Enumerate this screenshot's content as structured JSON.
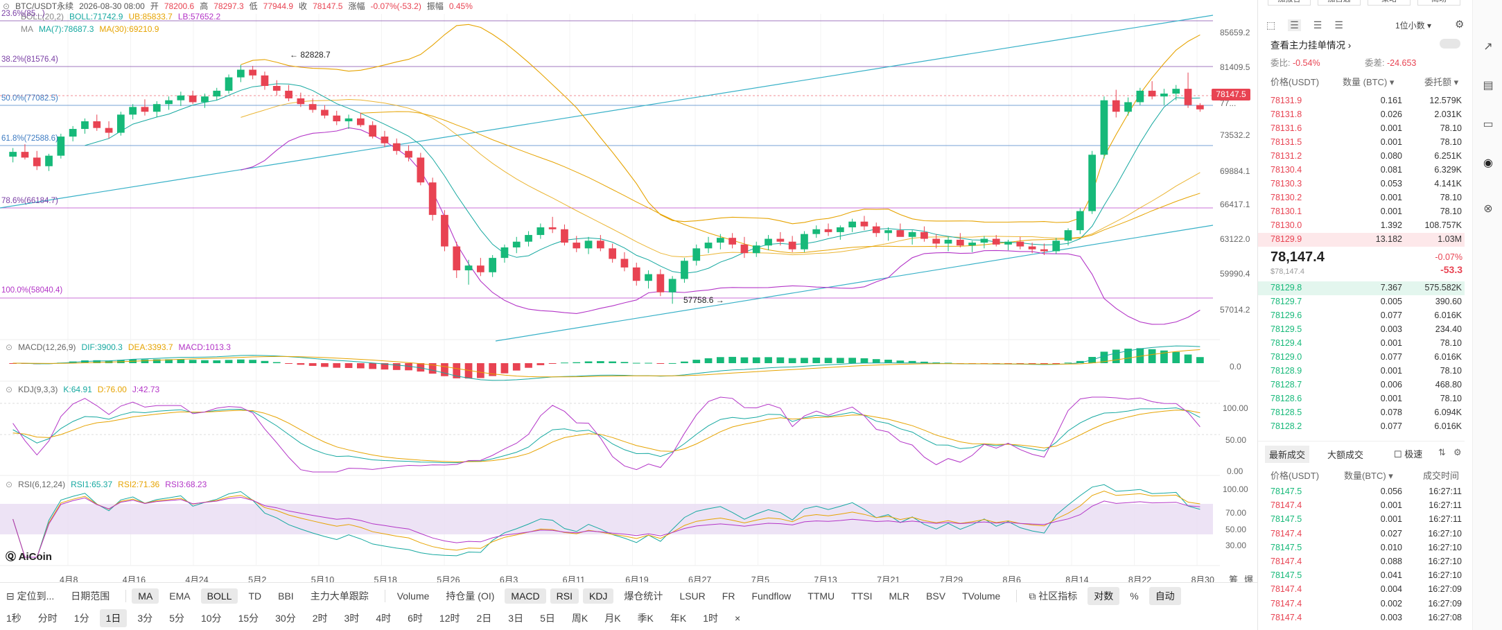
{
  "header": {
    "symbol": "BTC/USDT永续",
    "date": "2026-08-30 08:00",
    "open_label": "开",
    "open": "78200.6",
    "high_label": "高",
    "high": "78297.3",
    "low_label": "低",
    "low": "77944.9",
    "close_label": "收",
    "close": "78147.5",
    "chg_label": "涨幅",
    "chg": "-0.07%(-53.2)",
    "amp_label": "振幅",
    "amp": "0.45%"
  },
  "boll": {
    "name": "BOLL(20,2)",
    "boll": "BOLL:71742.9",
    "ub": "UB:85833.7",
    "lb": "LB:57652.2"
  },
  "ma": {
    "name": "MA",
    "ma7": "MA(7):78687.3",
    "ma30": "MA(30):69210.9"
  },
  "fib": {
    "f236": "23.6%(85...)",
    "f382": "38.2%(81576.4)",
    "f50": "50.0%(77082.5)",
    "f618": "61.8%(72588.6)",
    "f786": "78.6%(66184.7)",
    "f100": "100.0%(58040.4)"
  },
  "annotations": {
    "high": "82828.7",
    "low": "57758.6"
  },
  "price_axis": [
    "85659.2",
    "81409.5",
    "77...",
    "73532.2",
    "69884.1",
    "66417.1",
    "63122.0",
    "59990.4",
    "57014.2"
  ],
  "last_price_tag": "78147.5",
  "macd": {
    "name": "MACD(12,26,9)",
    "dif": "DIF:3900.3",
    "dea": "DEA:3393.7",
    "macd": "MACD:1013.3",
    "axis": "0.0"
  },
  "kdj": {
    "name": "KDJ(9,3,3)",
    "k": "K:64.91",
    "d": "D:76.00",
    "j": "J:42.73",
    "axis": [
      "100.00",
      "50.00",
      "0.00"
    ]
  },
  "rsi": {
    "name": "RSI(6,12,24)",
    "r1": "RSI1:65.37",
    "r2": "RSI2:71.36",
    "r3": "RSI3:68.23",
    "axis": [
      "100.00",
      "70.00",
      "50.00",
      "30.00"
    ]
  },
  "logo": "AiCoin",
  "x_axis": [
    "4月8",
    "4月16",
    "4月24",
    "5月2",
    "5月10",
    "5月18",
    "5月26",
    "6月3",
    "6月11",
    "6月19",
    "6月27",
    "7月5",
    "7月13",
    "7月21",
    "7月29",
    "8月6",
    "8月14",
    "8月22",
    "8月30"
  ],
  "x_axis_right": [
    "筹",
    "爆"
  ],
  "toolbar1": {
    "left": [
      "定位到...",
      "日期范围"
    ],
    "indicators": [
      "MA",
      "EMA",
      "BOLL",
      "TD",
      "BBI",
      "主力大单跟踪"
    ],
    "subs": [
      "Volume",
      "持仓量 (OI)",
      "MACD",
      "RSI",
      "KDJ",
      "爆仓统计",
      "LSUR",
      "FR",
      "Fundflow",
      "TTMU",
      "TTSI",
      "MLR",
      "BSV",
      "TVolume"
    ],
    "right": [
      "社区指标",
      "对数",
      "%",
      "自动"
    ]
  },
  "toolbar2": [
    "1秒",
    "分时",
    "1分",
    "1日",
    "3分",
    "5分",
    "10分",
    "15分",
    "30分",
    "2时",
    "3时",
    "4时",
    "6时",
    "12时",
    "2日",
    "3日",
    "5日",
    "周K",
    "月K",
    "季K",
    "年K",
    "1时",
    "×"
  ],
  "panel": {
    "top_tabs": [
      "加报告",
      "加自选",
      "策略",
      "离场"
    ],
    "decimal": "1位小数",
    "big_orders": "查看主力挂单情况",
    "ratio_label": "委比:",
    "ratio": "-0.54%",
    "diff_label": "委差:",
    "diff": "-24.653",
    "col_price": "价格(USDT)",
    "col_qty": "数量 (BTC)",
    "col_total": "委托额",
    "asks": [
      [
        "78131.9",
        "0.161",
        "12.579K"
      ],
      [
        "78131.8",
        "0.026",
        "2.031K"
      ],
      [
        "78131.6",
        "0.001",
        "78.10"
      ],
      [
        "78131.5",
        "0.001",
        "78.10"
      ],
      [
        "78131.2",
        "0.080",
        "6.251K"
      ],
      [
        "78130.4",
        "0.081",
        "6.329K"
      ],
      [
        "78130.3",
        "0.053",
        "4.141K"
      ],
      [
        "78130.2",
        "0.001",
        "78.10"
      ],
      [
        "78130.1",
        "0.001",
        "78.10"
      ],
      [
        "78130.0",
        "1.392",
        "108.757K"
      ],
      [
        "78129.9",
        "13.182",
        "1.03M"
      ]
    ],
    "mid_price": "78,147.4",
    "mid_sub": "$78,147.4",
    "mid_chg": "-0.07%",
    "mid_diff": "-53.3",
    "bids": [
      [
        "78129.8",
        "7.367",
        "575.582K"
      ],
      [
        "78129.7",
        "0.005",
        "390.60"
      ],
      [
        "78129.6",
        "0.077",
        "6.016K"
      ],
      [
        "78129.5",
        "0.003",
        "234.40"
      ],
      [
        "78129.4",
        "0.001",
        "78.10"
      ],
      [
        "78129.0",
        "0.077",
        "6.016K"
      ],
      [
        "78128.9",
        "0.001",
        "78.10"
      ],
      [
        "78128.7",
        "0.006",
        "468.80"
      ],
      [
        "78128.6",
        "0.001",
        "78.10"
      ],
      [
        "78128.5",
        "0.078",
        "6.094K"
      ],
      [
        "78128.2",
        "0.077",
        "6.016K"
      ]
    ],
    "trade_tabs": [
      "最新成交",
      "大额成交"
    ],
    "fast_label": "极速",
    "t_col_price": "价格(USDT)",
    "t_col_qty": "数量(BTC)",
    "t_col_time": "成交时间",
    "trades": [
      [
        "78147.5",
        "0.056",
        "16:27:11",
        "g"
      ],
      [
        "78147.4",
        "0.001",
        "16:27:11",
        "r"
      ],
      [
        "78147.5",
        "0.001",
        "16:27:11",
        "g"
      ],
      [
        "78147.4",
        "0.027",
        "16:27:10",
        "r"
      ],
      [
        "78147.5",
        "0.010",
        "16:27:10",
        "g"
      ],
      [
        "78147.4",
        "0.088",
        "16:27:10",
        "r"
      ],
      [
        "78147.5",
        "0.041",
        "16:27:10",
        "g"
      ],
      [
        "78147.4",
        "0.004",
        "16:27:09",
        "r"
      ],
      [
        "78147.4",
        "0.002",
        "16:27:09",
        "r"
      ],
      [
        "78147.4",
        "0.003",
        "16:27:08",
        "r"
      ]
    ]
  },
  "chart_data": {
    "type": "candlestick",
    "ylim": [
      55500,
      88000
    ],
    "candles": [
      [
        73200,
        74100,
        72600,
        73700
      ],
      [
        73700,
        74500,
        72900,
        73100
      ],
      [
        73100,
        73800,
        71800,
        72200
      ],
      [
        72200,
        73500,
        71700,
        73300
      ],
      [
        73300,
        75600,
        73000,
        75300
      ],
      [
        75300,
        76400,
        74800,
        76100
      ],
      [
        76100,
        77200,
        75600,
        76900
      ],
      [
        76900,
        77600,
        75900,
        76200
      ],
      [
        76200,
        76900,
        75100,
        75700
      ],
      [
        75700,
        77900,
        75400,
        77600
      ],
      [
        77600,
        78700,
        77100,
        78400
      ],
      [
        78400,
        79200,
        77500,
        77900
      ],
      [
        77900,
        79000,
        77300,
        78700
      ],
      [
        78700,
        79500,
        78100,
        79100
      ],
      [
        79100,
        80000,
        78500,
        79600
      ],
      [
        79600,
        80100,
        78700,
        78900
      ],
      [
        78900,
        79800,
        78300,
        79500
      ],
      [
        79500,
        80400,
        79100,
        80100
      ],
      [
        80100,
        81800,
        79800,
        81500
      ],
      [
        81500,
        82800,
        81000,
        82300
      ],
      [
        82300,
        82700,
        81300,
        81700
      ],
      [
        81700,
        82100,
        80200,
        80600
      ],
      [
        80600,
        81200,
        79600,
        80100
      ],
      [
        80100,
        80700,
        79000,
        79300
      ],
      [
        79300,
        79900,
        78400,
        78700
      ],
      [
        78700,
        79300,
        77800,
        78100
      ],
      [
        78100,
        78600,
        77200,
        77500
      ],
      [
        77500,
        78000,
        76500,
        76900
      ],
      [
        76900,
        77600,
        76100,
        77200
      ],
      [
        77200,
        77800,
        76300,
        76500
      ],
      [
        76500,
        76900,
        75100,
        75300
      ],
      [
        75300,
        75900,
        74200,
        74600
      ],
      [
        74600,
        75100,
        73400,
        73800
      ],
      [
        73800,
        74400,
        72700,
        73100
      ],
      [
        73100,
        73600,
        70200,
        70500
      ],
      [
        70500,
        71000,
        66500,
        67100
      ],
      [
        67100,
        67600,
        63300,
        63800
      ],
      [
        63800,
        64300,
        60500,
        61300
      ],
      [
        61300,
        62400,
        59800,
        61800
      ],
      [
        61800,
        62600,
        60700,
        61100
      ],
      [
        61100,
        62900,
        60600,
        62600
      ],
      [
        62600,
        64000,
        62100,
        63700
      ],
      [
        63700,
        64800,
        63100,
        64300
      ],
      [
        64300,
        65400,
        63800,
        65000
      ],
      [
        65000,
        66200,
        64600,
        65800
      ],
      [
        65800,
        66900,
        65200,
        65600
      ],
      [
        65600,
        66100,
        63900,
        64200
      ],
      [
        64200,
        64900,
        63200,
        63600
      ],
      [
        63600,
        64800,
        63000,
        64400
      ],
      [
        64400,
        65000,
        63300,
        63600
      ],
      [
        63600,
        64100,
        62100,
        62500
      ],
      [
        62500,
        63200,
        61200,
        61600
      ],
      [
        61600,
        62100,
        59700,
        60200
      ],
      [
        60200,
        61300,
        59400,
        60900
      ],
      [
        60900,
        61400,
        58600,
        59000
      ],
      [
        59000,
        60700,
        57800,
        60400
      ],
      [
        60400,
        62600,
        60000,
        62300
      ],
      [
        62300,
        64000,
        61800,
        63600
      ],
      [
        63600,
        64800,
        63100,
        64200
      ],
      [
        64200,
        65100,
        63500,
        64700
      ],
      [
        64700,
        65200,
        63600,
        64000
      ],
      [
        64000,
        64800,
        62600,
        63100
      ],
      [
        63100,
        64300,
        62700,
        63900
      ],
      [
        63900,
        65000,
        63400,
        64600
      ],
      [
        64600,
        65300,
        63900,
        64300
      ],
      [
        64300,
        64900,
        63200,
        63500
      ],
      [
        63500,
        65400,
        63200,
        65100
      ],
      [
        65100,
        66000,
        64700,
        65600
      ],
      [
        65600,
        66200,
        64900,
        65300
      ],
      [
        65300,
        66000,
        64500,
        65800
      ],
      [
        65800,
        66700,
        65300,
        66400
      ],
      [
        66400,
        67000,
        65500,
        65900
      ],
      [
        65900,
        66300,
        64800,
        65200
      ],
      [
        65200,
        65800,
        64400,
        65500
      ],
      [
        65500,
        66200,
        64900,
        64800
      ],
      [
        64800,
        65500,
        64000,
        65300
      ],
      [
        65300,
        65900,
        64300,
        64600
      ],
      [
        64600,
        65100,
        63600,
        64100
      ],
      [
        64100,
        64800,
        63300,
        64500
      ],
      [
        64500,
        65200,
        63700,
        63900
      ],
      [
        63900,
        64400,
        63200,
        64200
      ],
      [
        64200,
        64900,
        63600,
        64600
      ],
      [
        64600,
        65000,
        63800,
        64000
      ],
      [
        64000,
        64500,
        63400,
        64300
      ],
      [
        64300,
        64800,
        63500,
        63800
      ],
      [
        63800,
        64200,
        63100,
        63500
      ],
      [
        63500,
        64100,
        62900,
        63300
      ],
      [
        63300,
        64700,
        63000,
        64400
      ],
      [
        64400,
        65700,
        63900,
        65500
      ],
      [
        65500,
        67800,
        65100,
        67500
      ],
      [
        67500,
        73800,
        67200,
        73400
      ],
      [
        73400,
        79500,
        73000,
        79100
      ],
      [
        79100,
        80200,
        77300,
        77900
      ],
      [
        77900,
        79400,
        77500,
        78900
      ],
      [
        78900,
        80400,
        78600,
        80100
      ],
      [
        80100,
        81100,
        79200,
        79500
      ],
      [
        79500,
        80300,
        78600,
        79800
      ],
      [
        79800,
        80700,
        79100,
        80300
      ],
      [
        80300,
        82000,
        78300,
        78600
      ],
      [
        78600,
        78800,
        77900,
        78147.5
      ]
    ]
  }
}
